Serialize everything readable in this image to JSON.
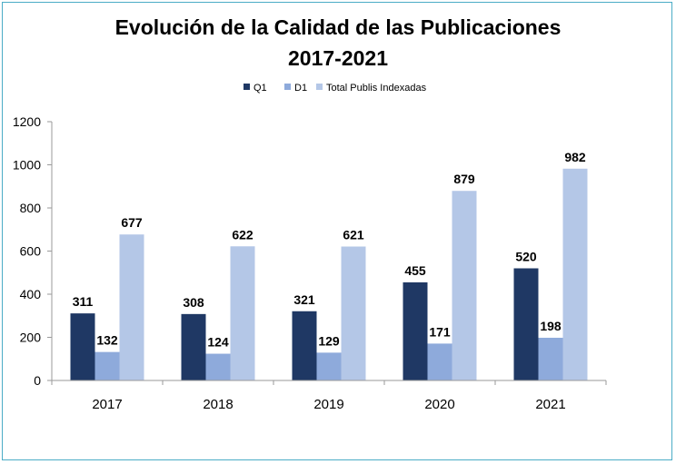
{
  "chart_data": {
    "type": "bar",
    "title_line1": "Evolución de la Calidad de las Publicaciones",
    "title_line2": "2017-2021",
    "categories": [
      "2017",
      "2018",
      "2019",
      "2020",
      "2021"
    ],
    "series": [
      {
        "name": "Q1",
        "color": "#1f3864",
        "values": [
          311,
          308,
          321,
          455,
          520
        ]
      },
      {
        "name": "D1",
        "color": "#8eaadb",
        "values": [
          132,
          124,
          129,
          171,
          198
        ]
      },
      {
        "name": "Total Publis Indexadas",
        "color": "#b4c7e7",
        "values": [
          677,
          622,
          621,
          879,
          982
        ]
      }
    ],
    "yticks": [
      "0",
      "200",
      "400",
      "600",
      "800",
      "1000",
      "1200"
    ],
    "ylim": [
      0,
      1200
    ],
    "xlabel": "",
    "ylabel": "",
    "grid": false,
    "legend_position": "top"
  }
}
